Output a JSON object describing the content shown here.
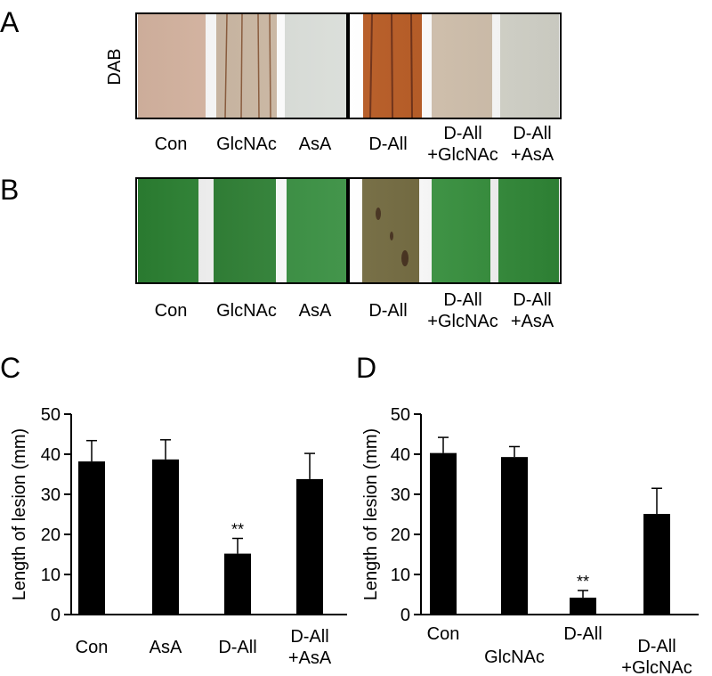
{
  "panel_labels": [
    "A",
    "B",
    "C",
    "D"
  ],
  "panel_a": {
    "stain_label": "DAB",
    "labels": [
      "Con",
      "GlcNAc",
      "AsA",
      "D-All",
      "D-All\n+GlcNAc",
      "D-All\n+AsA"
    ]
  },
  "panel_b": {
    "labels": [
      "Con",
      "GlcNAc",
      "AsA",
      "D-All",
      "D-All\n+GlcNAc",
      "D-All\n+AsA"
    ]
  },
  "chart_data": [
    {
      "type": "bar",
      "y_label": "Length of lesion (mm)",
      "categories": [
        "Con",
        "AsA",
        "D-All",
        "D-All\n+AsA"
      ],
      "values": [
        38.2,
        38.7,
        15.2,
        33.8
      ],
      "errors": [
        5.2,
        4.9,
        3.8,
        6.4
      ],
      "color": "#000000",
      "ylim": [
        0,
        50
      ],
      "yticks": [
        0,
        10,
        20,
        30,
        40,
        50
      ],
      "annotations": [
        {
          "text": "**",
          "index": 2
        }
      ]
    },
    {
      "type": "bar",
      "y_label": "Length of lesion (mm)",
      "categories": [
        "Con",
        "GlcNAc",
        "D-All",
        "D-All\n+GlcNAc"
      ],
      "values": [
        40.3,
        39.3,
        4.2,
        25.1
      ],
      "errors": [
        3.9,
        2.6,
        1.8,
        6.4
      ],
      "color": "#000000",
      "ylim": [
        0,
        50
      ],
      "yticks": [
        0,
        10,
        20,
        30,
        40,
        50
      ],
      "annotations": [
        {
          "text": "**",
          "index": 2
        }
      ]
    }
  ]
}
